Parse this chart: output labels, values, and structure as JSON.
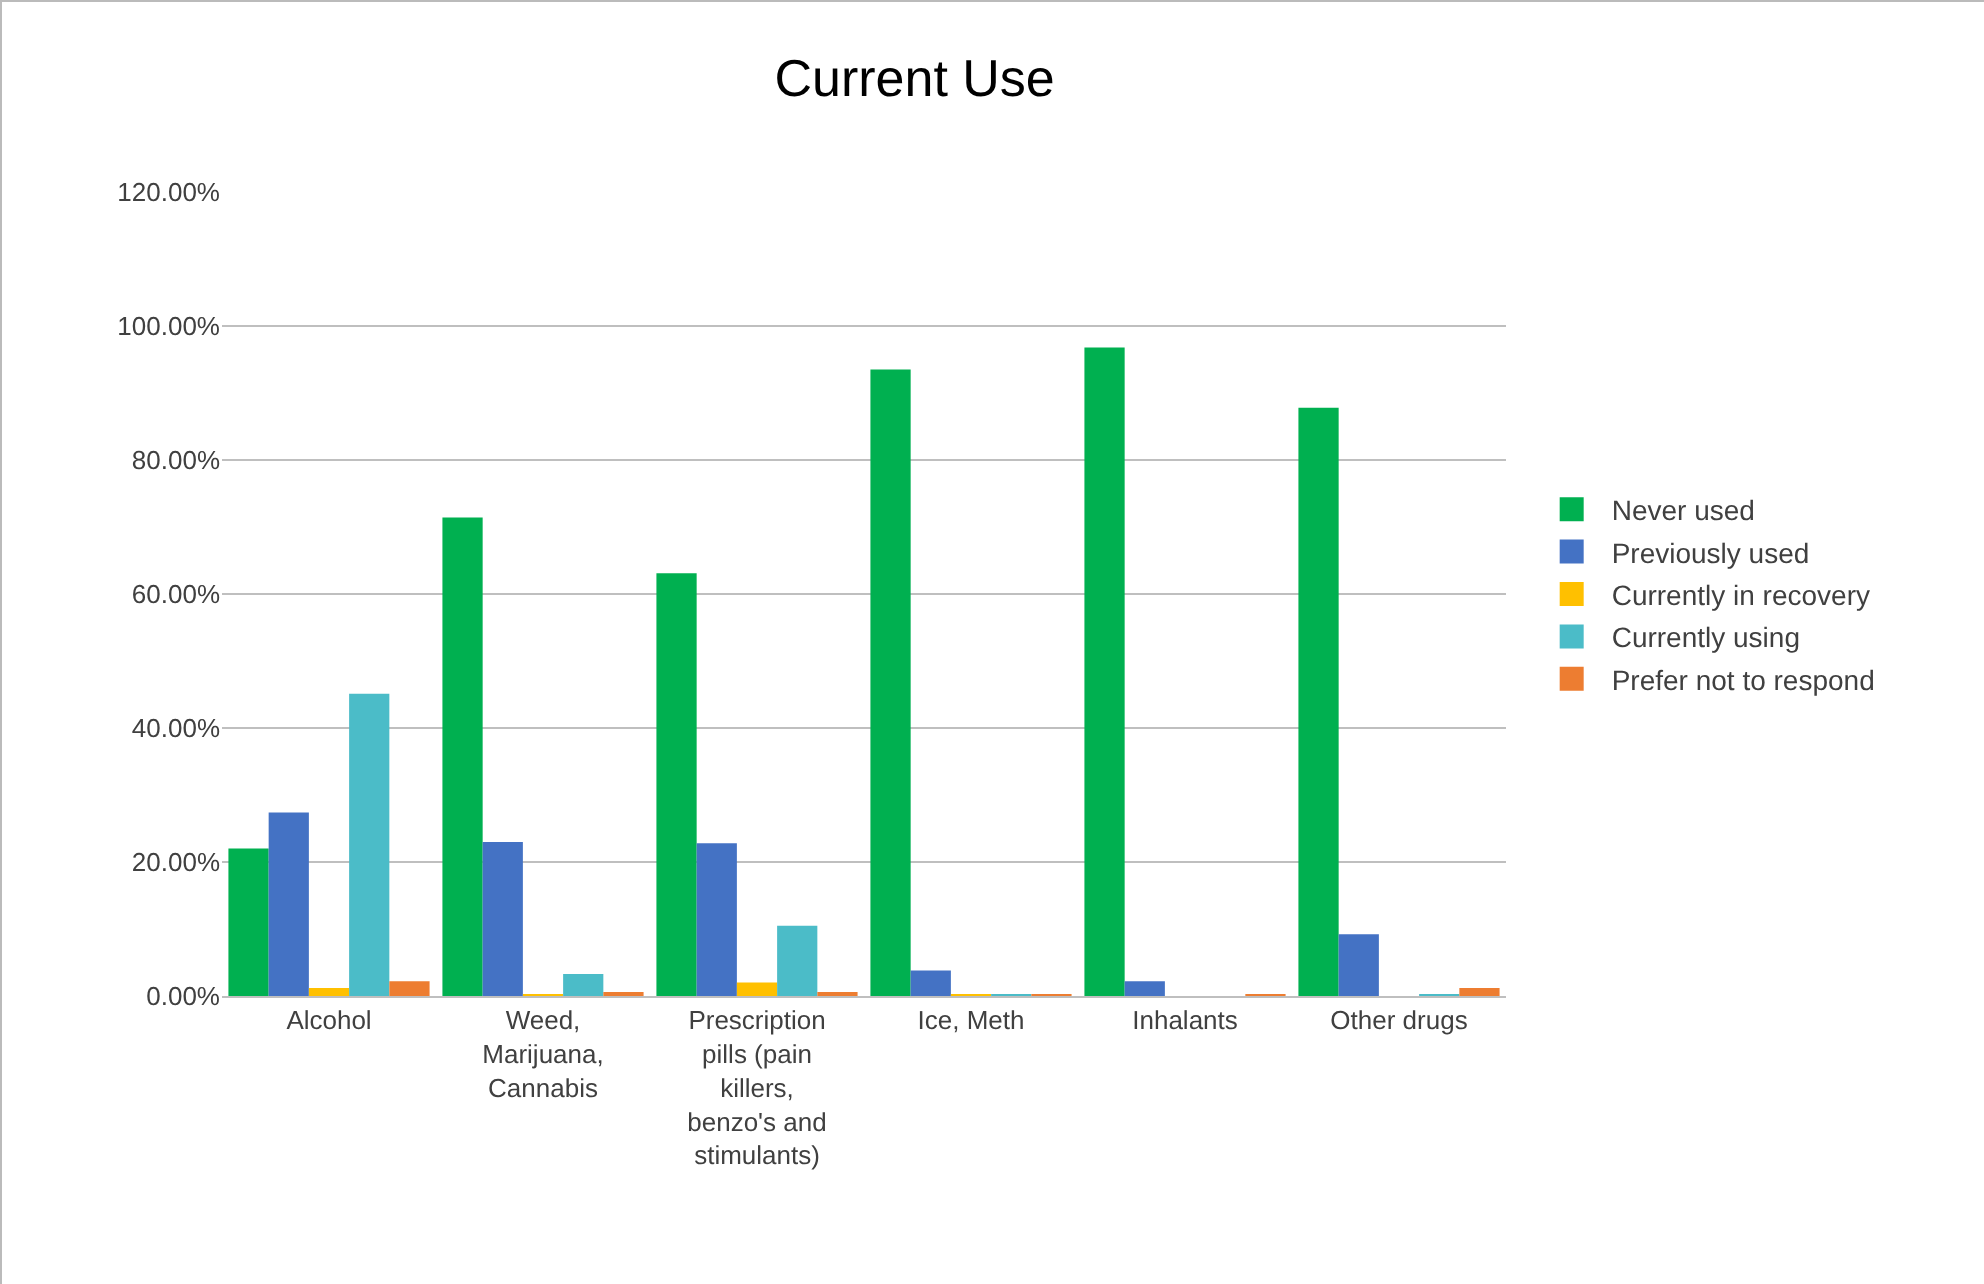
{
  "chart_data": {
    "type": "bar",
    "title": "Current Use",
    "categories": [
      "Alcohol",
      "Weed, Marijuana, Cannabis",
      "Prescription pills (pain killers, benzo's and stimulants)",
      "Ice, Meth",
      "Inhalants",
      "Other drugs"
    ],
    "series": [
      {
        "name": "Never used",
        "color": "#00b050",
        "values": [
          22.0,
          71.4,
          63.1,
          93.5,
          96.8,
          87.8
        ]
      },
      {
        "name": "Previously used",
        "color": "#4472c4",
        "values": [
          27.4,
          23.0,
          22.8,
          3.8,
          2.2,
          9.2
        ]
      },
      {
        "name": "Currently in recovery",
        "color": "#ffc000",
        "values": [
          1.2,
          0.2,
          2.0,
          0.3,
          0,
          0
        ]
      },
      {
        "name": "Currently using",
        "color": "#4bbcc8",
        "values": [
          45.1,
          3.3,
          10.5,
          0.3,
          0,
          0.3
        ]
      },
      {
        "name": "Prefer not to respond",
        "color": "#ed7d31",
        "values": [
          2.2,
          0.5,
          0.4,
          0.3,
          0.3,
          1.2
        ]
      }
    ],
    "ylim": [
      0,
      120
    ],
    "yticks": [
      {
        "value": 0,
        "label": "0.00%"
      },
      {
        "value": 20,
        "label": "20.00%"
      },
      {
        "value": 40,
        "label": "40.00%"
      },
      {
        "value": 60,
        "label": "60.00%"
      },
      {
        "value": 80,
        "label": "80.00%"
      },
      {
        "value": 100,
        "label": "100.00%"
      },
      {
        "value": 120,
        "label": "120.00%"
      }
    ],
    "grid": "y",
    "legend": "right"
  }
}
